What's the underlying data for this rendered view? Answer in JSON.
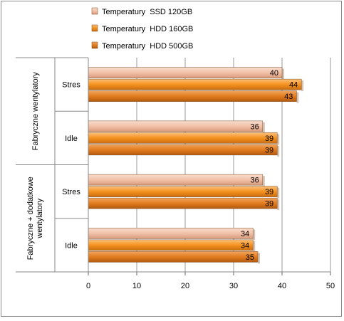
{
  "chart_data": {
    "type": "bar",
    "orientation": "horizontal",
    "legend_position": "top",
    "grid": true,
    "xlim": [
      0,
      50
    ],
    "x_ticks": [
      "0",
      "10",
      "20",
      "30",
      "40",
      "50"
    ],
    "groups": [
      {
        "label": "Fabryczne  wentylatory",
        "categories": [
          {
            "label": "Stres",
            "values": [
              40,
              44,
              43
            ]
          },
          {
            "label": "Idle",
            "values": [
              36,
              39,
              39
            ]
          }
        ]
      },
      {
        "label": "Fabryczne + dodatkowe wentylatory",
        "categories": [
          {
            "label": "Stres",
            "values": [
              36,
              39,
              39
            ]
          },
          {
            "label": "Idle",
            "values": [
              34,
              34,
              35
            ]
          }
        ]
      }
    ],
    "series": [
      {
        "name": "Temperatury  SSD 120GB",
        "color": "#f2c3ac"
      },
      {
        "name": "Temperatury  HDD 160GB",
        "color": "#f5921f"
      },
      {
        "name": "Temperatury  HDD 500GB",
        "color": "#e27c1e"
      }
    ]
  }
}
